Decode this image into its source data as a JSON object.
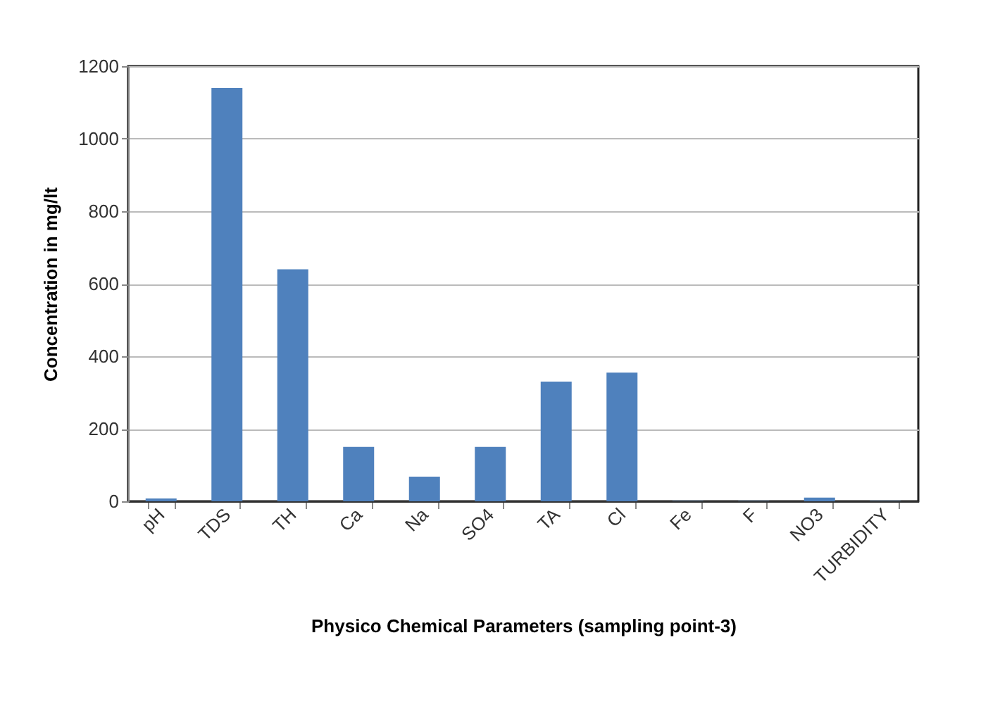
{
  "chart_data": {
    "type": "bar",
    "xlabel": "Physico Chemical Parameters (sampling point-3)",
    "ylabel": "Concentration in mg/lt",
    "categories": [
      "pH",
      "TDS",
      "TH",
      "Ca",
      "Na",
      "SO4",
      "TA",
      "Cl",
      "Fe",
      "F",
      "NO3",
      "TURBIDITY"
    ],
    "values": [
      8,
      1140,
      640,
      150,
      68,
      150,
      330,
      355,
      1,
      1,
      10,
      1
    ],
    "color": "#4f81bd",
    "ylim": [
      0,
      1200
    ],
    "yticks": [
      0,
      200,
      400,
      600,
      800,
      1000,
      1200
    ],
    "grid": "y"
  }
}
